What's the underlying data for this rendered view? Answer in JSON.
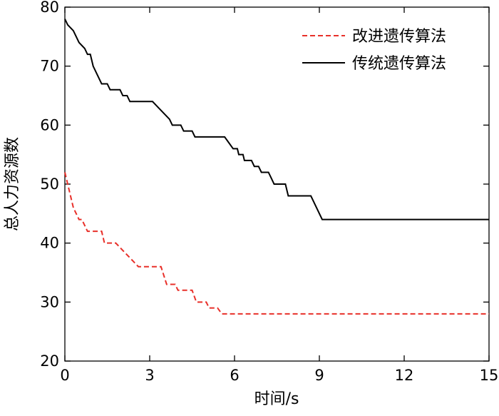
{
  "chart_data": {
    "type": "line",
    "title": "",
    "xlabel": "时间/s",
    "ylabel": "总人力资源数",
    "xlim": [
      0,
      15
    ],
    "ylim": [
      20,
      80
    ],
    "xticks": [
      0,
      3,
      6,
      9,
      12,
      15
    ],
    "yticks": [
      20,
      30,
      40,
      50,
      60,
      70,
      80
    ],
    "grid": false,
    "legend_position": "top-right",
    "series": [
      {
        "name": "改进遗传算法",
        "color": "#e8302a",
        "line_style": "dashed",
        "points": [
          [
            0,
            52
          ],
          [
            0.1,
            50
          ],
          [
            0.2,
            48
          ],
          [
            0.3,
            46
          ],
          [
            0.4,
            45
          ],
          [
            0.5,
            44
          ],
          [
            0.6,
            44
          ],
          [
            0.7,
            43
          ],
          [
            0.8,
            42
          ],
          [
            1.3,
            42
          ],
          [
            1.35,
            41
          ],
          [
            1.4,
            40
          ],
          [
            1.7,
            40
          ],
          [
            1.8,
            40
          ],
          [
            2.0,
            39
          ],
          [
            2.2,
            38
          ],
          [
            2.4,
            37
          ],
          [
            2.6,
            36
          ],
          [
            2.8,
            36
          ],
          [
            3.4,
            36
          ],
          [
            3.6,
            33
          ],
          [
            3.9,
            33
          ],
          [
            4.0,
            32
          ],
          [
            4.5,
            32
          ],
          [
            4.65,
            30
          ],
          [
            5.0,
            30
          ],
          [
            5.1,
            29
          ],
          [
            5.4,
            29
          ],
          [
            5.55,
            28
          ],
          [
            15,
            28
          ]
        ]
      },
      {
        "name": "传统遗传算法",
        "color": "#000000",
        "line_style": "solid",
        "points": [
          [
            0,
            78
          ],
          [
            0.1,
            77
          ],
          [
            0.3,
            76
          ],
          [
            0.4,
            75
          ],
          [
            0.5,
            74
          ],
          [
            0.7,
            73
          ],
          [
            0.8,
            72
          ],
          [
            0.9,
            72
          ],
          [
            1.0,
            70
          ],
          [
            1.1,
            69
          ],
          [
            1.2,
            68
          ],
          [
            1.3,
            67
          ],
          [
            1.5,
            67
          ],
          [
            1.6,
            66
          ],
          [
            1.95,
            66
          ],
          [
            2.05,
            65
          ],
          [
            2.2,
            65
          ],
          [
            2.3,
            64
          ],
          [
            3.1,
            64
          ],
          [
            3.3,
            63
          ],
          [
            3.5,
            62
          ],
          [
            3.7,
            61
          ],
          [
            3.8,
            60
          ],
          [
            4.1,
            60
          ],
          [
            4.2,
            59
          ],
          [
            4.5,
            59
          ],
          [
            4.6,
            58
          ],
          [
            5.65,
            58
          ],
          [
            5.8,
            57
          ],
          [
            5.95,
            56
          ],
          [
            6.1,
            56
          ],
          [
            6.15,
            55
          ],
          [
            6.3,
            55
          ],
          [
            6.35,
            54
          ],
          [
            6.6,
            54
          ],
          [
            6.7,
            53
          ],
          [
            6.85,
            53
          ],
          [
            6.95,
            52
          ],
          [
            7.2,
            52
          ],
          [
            7.3,
            51
          ],
          [
            7.4,
            50
          ],
          [
            7.8,
            50
          ],
          [
            7.9,
            48
          ],
          [
            8.7,
            48
          ],
          [
            8.9,
            46
          ],
          [
            9.1,
            44
          ],
          [
            15,
            44
          ]
        ]
      }
    ]
  }
}
